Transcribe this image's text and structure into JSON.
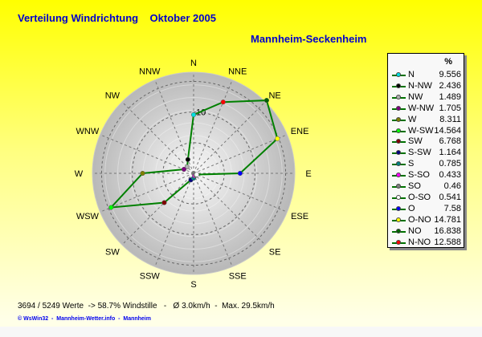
{
  "title": "Verteilung Windrichtung    Oktober 2005",
  "station": "Mannheim-Seckenheim",
  "stats": "3694 / 5249 Werte  -> 58.7% Windstille   -   Ø 3.0km/h  -  Max. 29.5km/h",
  "credits": "© WsWin32  -  Mannheim-Wetter.info  -  Mannheim",
  "chart_data": {
    "type": "radar",
    "compass_labels": [
      "N",
      "NNE",
      "NE",
      "ENE",
      "E",
      "ESE",
      "SE",
      "SSE",
      "S",
      "SSW",
      "SW",
      "WSW",
      "W",
      "WNW",
      "NW",
      "NNW"
    ],
    "radial_tick_label": "10",
    "rings": [
      5,
      10,
      15
    ],
    "rmax": 16.5,
    "line_color": "#008000",
    "legend_header": "%",
    "series": [
      {
        "name": "N",
        "angle": 0,
        "value": 9.556,
        "color": "#00e0e0"
      },
      {
        "name": "N-NW",
        "angle": 337.5,
        "value": 2.436,
        "color": "#000000"
      },
      {
        "name": "NW",
        "angle": 315,
        "value": 1.489,
        "color": "#b0b0b0"
      },
      {
        "name": "W-NW",
        "angle": 292.5,
        "value": 1.705,
        "color": "#800080"
      },
      {
        "name": "W",
        "angle": 270,
        "value": 8.311,
        "color": "#808000"
      },
      {
        "name": "W-SW",
        "angle": 247.5,
        "value": 14.564,
        "color": "#00ff00"
      },
      {
        "name": "SW",
        "angle": 225,
        "value": 6.768,
        "color": "#800000"
      },
      {
        "name": "S-SW",
        "angle": 202.5,
        "value": 1.164,
        "color": "#000080"
      },
      {
        "name": "S",
        "angle": 180,
        "value": 0.785,
        "color": "#008080"
      },
      {
        "name": "S-SO",
        "angle": 157.5,
        "value": 0.433,
        "color": "#ff00ff"
      },
      {
        "name": "SO",
        "angle": 135,
        "value": 0.46,
        "color": "#808080"
      },
      {
        "name": "O-SO",
        "angle": 112.5,
        "value": 0.541,
        "color": "#ffffff"
      },
      {
        "name": "O",
        "angle": 90,
        "value": 7.58,
        "color": "#0000ff"
      },
      {
        "name": "O-NO",
        "angle": 67.5,
        "value": 14.781,
        "color": "#ffff00"
      },
      {
        "name": "NO",
        "angle": 45,
        "value": 16.838,
        "color": "#006000"
      },
      {
        "name": "N-NO",
        "angle": 22.5,
        "value": 12.588,
        "color": "#ff0000"
      }
    ]
  }
}
